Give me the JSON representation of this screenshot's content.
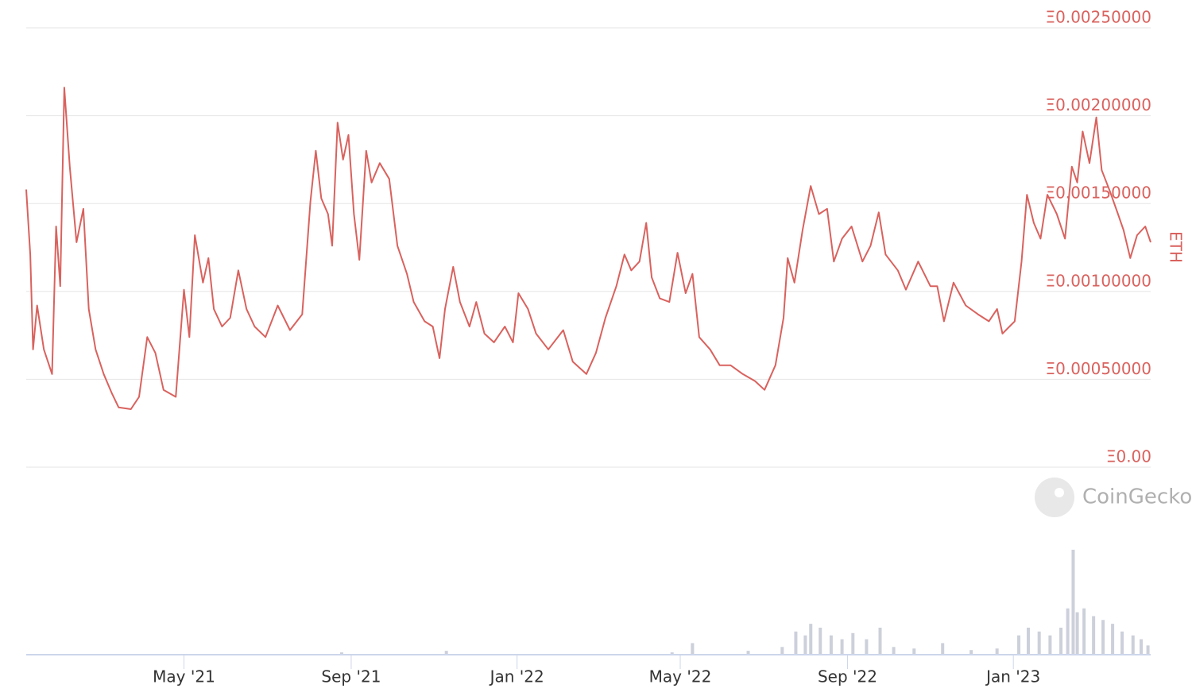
{
  "watermark": "CoinGecko",
  "chart_data": [
    {
      "type": "line",
      "ylabel": "ETH",
      "color": "#d9625e",
      "grid": true,
      "xlim": [
        "2021-01-05",
        "2023-04-12"
      ],
      "xticks": [
        {
          "value": "2021-05-01",
          "label": "May '21"
        },
        {
          "value": "2021-09-01",
          "label": "Sep '21"
        },
        {
          "value": "2022-01-01",
          "label": "Jan '22"
        },
        {
          "value": "2022-05-01",
          "label": "May '22"
        },
        {
          "value": "2022-09-01",
          "label": "Sep '22"
        },
        {
          "value": "2023-01-01",
          "label": "Jan '23"
        }
      ],
      "ylim": [
        0,
        0.0025
      ],
      "yticks": [
        {
          "value": 0,
          "label": "Ξ0.00"
        },
        {
          "value": 0.0005,
          "label": "Ξ0.00050000"
        },
        {
          "value": 0.001,
          "label": "Ξ0.00100000"
        },
        {
          "value": 0.0015,
          "label": "Ξ0.00150000"
        },
        {
          "value": 0.002,
          "label": "Ξ0.00200000"
        },
        {
          "value": 0.0025,
          "label": "Ξ0.00250000"
        }
      ],
      "x": [
        "2021-01-05",
        "2021-01-08",
        "2021-01-10",
        "2021-01-13",
        "2021-01-18",
        "2021-01-24",
        "2021-01-27",
        "2021-01-30",
        "2021-02-02",
        "2021-02-06",
        "2021-02-11",
        "2021-02-16",
        "2021-02-20",
        "2021-02-25",
        "2021-03-03",
        "2021-03-09",
        "2021-03-14",
        "2021-03-23",
        "2021-03-29",
        "2021-04-04",
        "2021-04-10",
        "2021-04-16",
        "2021-04-25",
        "2021-05-01",
        "2021-05-05",
        "2021-05-09",
        "2021-05-15",
        "2021-05-19",
        "2021-05-23",
        "2021-05-29",
        "2021-06-04",
        "2021-06-10",
        "2021-06-16",
        "2021-06-22",
        "2021-06-30",
        "2021-07-09",
        "2021-07-18",
        "2021-07-27",
        "2021-08-02",
        "2021-08-06",
        "2021-08-10",
        "2021-08-15",
        "2021-08-18",
        "2021-08-22",
        "2021-08-26",
        "2021-08-30",
        "2021-09-03",
        "2021-09-07",
        "2021-09-12",
        "2021-09-16",
        "2021-09-22",
        "2021-09-29",
        "2021-10-05",
        "2021-10-12",
        "2021-10-17",
        "2021-10-25",
        "2021-10-31",
        "2021-11-05",
        "2021-11-09",
        "2021-11-15",
        "2021-11-20",
        "2021-11-27",
        "2021-12-02",
        "2021-12-08",
        "2021-12-15",
        "2021-12-23",
        "2021-12-29",
        "2022-01-02",
        "2022-01-09",
        "2022-01-15",
        "2022-01-24",
        "2022-02-04",
        "2022-02-11",
        "2022-02-21",
        "2022-02-28",
        "2022-03-07",
        "2022-03-15",
        "2022-03-21",
        "2022-03-26",
        "2022-04-01",
        "2022-04-06",
        "2022-04-10",
        "2022-04-16",
        "2022-04-23",
        "2022-04-29",
        "2022-05-05",
        "2022-05-10",
        "2022-05-15",
        "2022-05-23",
        "2022-05-30",
        "2022-06-07",
        "2022-06-16",
        "2022-06-25",
        "2022-07-02",
        "2022-07-10",
        "2022-07-16",
        "2022-07-19",
        "2022-07-24",
        "2022-07-30",
        "2022-08-05",
        "2022-08-11",
        "2022-08-17",
        "2022-08-22",
        "2022-08-28",
        "2022-09-04",
        "2022-09-12",
        "2022-09-18",
        "2022-09-24",
        "2022-09-29",
        "2022-10-08",
        "2022-10-14",
        "2022-10-23",
        "2022-11-01",
        "2022-11-06",
        "2022-11-11",
        "2022-11-18",
        "2022-11-27",
        "2022-12-06",
        "2022-12-14",
        "2022-12-20",
        "2022-12-24",
        "2023-01-02",
        "2023-01-07",
        "2023-01-11",
        "2023-01-16",
        "2023-01-21",
        "2023-01-26",
        "2023-02-02",
        "2023-02-08",
        "2023-02-13",
        "2023-02-17",
        "2023-02-21",
        "2023-02-26",
        "2023-03-03",
        "2023-03-07",
        "2023-03-13",
        "2023-03-19",
        "2023-03-23",
        "2023-03-28",
        "2023-04-02",
        "2023-04-08",
        "2023-04-12"
      ],
      "values": [
        0.00158,
        0.00121,
        0.00067,
        0.00092,
        0.00067,
        0.00053,
        0.00137,
        0.00103,
        0.00216,
        0.00171,
        0.00128,
        0.00147,
        0.0009,
        0.00067,
        0.00053,
        0.00042,
        0.00034,
        0.00033,
        0.0004,
        0.00074,
        0.00065,
        0.00044,
        0.0004,
        0.00101,
        0.00074,
        0.00132,
        0.00105,
        0.00119,
        0.0009,
        0.0008,
        0.00085,
        0.00112,
        0.0009,
        0.0008,
        0.00074,
        0.00092,
        0.00078,
        0.00087,
        0.00151,
        0.0018,
        0.00153,
        0.00144,
        0.00126,
        0.00196,
        0.00175,
        0.00189,
        0.00144,
        0.00118,
        0.0018,
        0.00162,
        0.00173,
        0.00164,
        0.00126,
        0.0011,
        0.00094,
        0.00083,
        0.0008,
        0.00062,
        0.0009,
        0.00114,
        0.00094,
        0.0008,
        0.00094,
        0.00076,
        0.00071,
        0.0008,
        0.00071,
        0.00099,
        0.0009,
        0.00076,
        0.00067,
        0.00078,
        0.0006,
        0.00053,
        0.00065,
        0.00085,
        0.00103,
        0.00121,
        0.00112,
        0.00117,
        0.00139,
        0.00108,
        0.00096,
        0.00094,
        0.00122,
        0.00099,
        0.0011,
        0.00074,
        0.00067,
        0.00058,
        0.00058,
        0.00053,
        0.00049,
        0.00044,
        0.00058,
        0.00085,
        0.00119,
        0.00105,
        0.00135,
        0.0016,
        0.00144,
        0.00147,
        0.00117,
        0.0013,
        0.00137,
        0.00117,
        0.00126,
        0.00145,
        0.00121,
        0.00112,
        0.00101,
        0.00117,
        0.00103,
        0.00103,
        0.00083,
        0.00105,
        0.00092,
        0.00087,
        0.00083,
        0.0009,
        0.00076,
        0.00083,
        0.00117,
        0.00155,
        0.00139,
        0.0013,
        0.00155,
        0.00144,
        0.0013,
        0.00171,
        0.00162,
        0.00191,
        0.00173,
        0.00199,
        0.00169,
        0.00157,
        0.00144,
        0.00135,
        0.00119,
        0.00132,
        0.00137,
        0.00128
      ]
    },
    {
      "type": "bar",
      "color": "#ccd0da",
      "ylim": [
        0,
        140
      ],
      "x": [
        "2021-08-25",
        "2021-11-10",
        "2022-04-25",
        "2022-05-10",
        "2022-06-20",
        "2022-07-15",
        "2022-07-25",
        "2022-08-01",
        "2022-08-05",
        "2022-08-12",
        "2022-08-20",
        "2022-08-28",
        "2022-09-05",
        "2022-09-15",
        "2022-09-25",
        "2022-10-05",
        "2022-10-20",
        "2022-11-10",
        "2022-12-01",
        "2022-12-20",
        "2023-01-05",
        "2023-01-12",
        "2023-01-20",
        "2023-01-28",
        "2023-02-05",
        "2023-02-10",
        "2023-02-14",
        "2023-02-17",
        "2023-02-22",
        "2023-03-01",
        "2023-03-08",
        "2023-03-15",
        "2023-03-22",
        "2023-03-30",
        "2023-04-05",
        "2023-04-10"
      ],
      "values": [
        3,
        5,
        3,
        15,
        5,
        10,
        30,
        25,
        40,
        35,
        25,
        20,
        28,
        20,
        35,
        10,
        8,
        15,
        6,
        8,
        25,
        35,
        30,
        25,
        35,
        60,
        136,
        55,
        60,
        50,
        45,
        40,
        30,
        25,
        20,
        12
      ]
    }
  ]
}
